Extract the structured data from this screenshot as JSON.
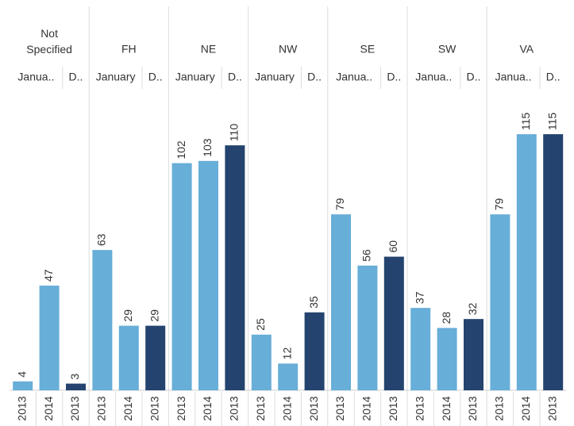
{
  "chart_data": {
    "type": "bar",
    "ylim": [
      0,
      135
    ],
    "groups": [
      {
        "name": "Not Specified",
        "months": [
          {
            "label": "Janua..",
            "color": "#67aed8",
            "years": [
              "2013",
              "2014"
            ],
            "values": [
              4,
              47
            ]
          },
          {
            "label": "D..",
            "color": "#24436e",
            "years": [
              "2013"
            ],
            "values": [
              3
            ]
          }
        ]
      },
      {
        "name": "FH",
        "months": [
          {
            "label": "January",
            "color": "#67aed8",
            "years": [
              "2013",
              "2014"
            ],
            "values": [
              63,
              29
            ]
          },
          {
            "label": "D..",
            "color": "#24436e",
            "years": [
              "2013"
            ],
            "values": [
              29
            ]
          }
        ]
      },
      {
        "name": "NE",
        "months": [
          {
            "label": "January",
            "color": "#67aed8",
            "years": [
              "2013",
              "2014"
            ],
            "values": [
              102,
              103
            ]
          },
          {
            "label": "D..",
            "color": "#24436e",
            "years": [
              "2013"
            ],
            "values": [
              110
            ]
          }
        ]
      },
      {
        "name": "NW",
        "months": [
          {
            "label": "January",
            "color": "#67aed8",
            "years": [
              "2013",
              "2014"
            ],
            "values": [
              25,
              12
            ]
          },
          {
            "label": "D..",
            "color": "#24436e",
            "years": [
              "2013"
            ],
            "values": [
              35
            ]
          }
        ]
      },
      {
        "name": "SE",
        "months": [
          {
            "label": "Janua..",
            "color": "#67aed8",
            "years": [
              "2013",
              "2014"
            ],
            "values": [
              79,
              56
            ]
          },
          {
            "label": "D..",
            "color": "#24436e",
            "years": [
              "2013"
            ],
            "values": [
              60
            ]
          }
        ]
      },
      {
        "name": "SW",
        "months": [
          {
            "label": "Janua..",
            "color": "#67aed8",
            "years": [
              "2013",
              "2014"
            ],
            "values": [
              37,
              28
            ]
          },
          {
            "label": "D..",
            "color": "#24436e",
            "years": [
              "2013"
            ],
            "values": [
              32
            ]
          }
        ]
      },
      {
        "name": "VA",
        "months": [
          {
            "label": "Janua..",
            "color": "#67aed8",
            "years": [
              "2013",
              "2014"
            ],
            "values": [
              79,
              115
            ]
          },
          {
            "label": "D..",
            "color": "#24436e",
            "years": [
              "2013"
            ],
            "values": [
              115
            ]
          }
        ]
      }
    ]
  }
}
